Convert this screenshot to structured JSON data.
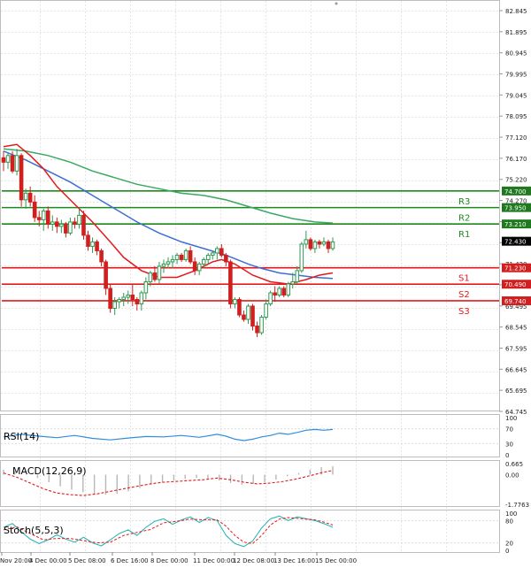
{
  "chart_data": {
    "type": "candlestick",
    "colors": {
      "up": "#2e9b52",
      "down": "#d11f1f",
      "ma_fast": "#e31a1c",
      "ma_mid": "#3b6fd6",
      "ma_slow": "#3aa864",
      "resistance": "#1f8a1f",
      "support": "#e31a1c",
      "rsi": "#2f8de0",
      "macd_hist": "#b7b7b7",
      "macd_signal": "#e31a1c",
      "stoch_k": "#2cb6b6",
      "stoch_d": "#e31a1c"
    },
    "price_axis": {
      "range": [
        64.745,
        82.845
      ],
      "ticks": [
        "82.845",
        "81.895",
        "80.945",
        "79.995",
        "79.045",
        "78.095",
        "77.120",
        "76.170",
        "75.220",
        "74.270",
        "73.320",
        "72.370",
        "71.420",
        "70.445",
        "69.495",
        "68.545",
        "67.595",
        "66.645",
        "65.695",
        "64.745"
      ]
    },
    "time_axis": {
      "labels": [
        "Nov 20:00",
        "4 Dec 00:00",
        "5 Dec 08:00",
        "6 Dec 16:00",
        "8 Dec 00:00",
        "11 Dec 00:00",
        "12 Dec 08:00",
        "13 Dec 16:00",
        "15 Dec 00:00"
      ]
    },
    "current_price": "72.430",
    "levels": [
      {
        "name": "R3",
        "value": 74.7,
        "price_label": "74.700",
        "kind": "resistance"
      },
      {
        "name": "R2",
        "value": 73.95,
        "price_label": "73.950",
        "kind": "resistance"
      },
      {
        "name": "R1",
        "value": 73.21,
        "price_label": "73.210",
        "kind": "resistance"
      },
      {
        "name": "S1",
        "value": 71.23,
        "price_label": "71.230",
        "kind": "support"
      },
      {
        "name": "S2",
        "value": 70.49,
        "price_label": "70.490",
        "kind": "support"
      },
      {
        "name": "S3",
        "value": 69.74,
        "price_label": "69.740",
        "kind": "support"
      }
    ],
    "candles": [
      [
        76.2,
        76.5,
        75.6,
        76.0
      ],
      [
        76.0,
        76.4,
        75.7,
        76.3
      ],
      [
        76.3,
        76.5,
        75.5,
        75.6
      ],
      [
        75.6,
        76.6,
        75.4,
        76.3
      ],
      [
        76.3,
        76.4,
        74.0,
        74.3
      ],
      [
        74.3,
        74.8,
        73.9,
        74.6
      ],
      [
        74.6,
        74.9,
        74.0,
        74.2
      ],
      [
        74.2,
        74.5,
        73.3,
        73.5
      ],
      [
        73.5,
        73.8,
        73.1,
        73.4
      ],
      [
        73.4,
        73.9,
        72.9,
        73.8
      ],
      [
        73.8,
        74.0,
        73.0,
        73.2
      ],
      [
        73.2,
        73.6,
        72.9,
        73.3
      ],
      [
        73.3,
        73.5,
        72.8,
        73.1
      ],
      [
        73.1,
        73.4,
        72.8,
        73.2
      ],
      [
        73.2,
        73.3,
        72.6,
        72.8
      ],
      [
        72.8,
        73.5,
        72.7,
        73.3
      ],
      [
        73.3,
        73.5,
        73.0,
        73.2
      ],
      [
        73.2,
        73.9,
        73.0,
        73.6
      ],
      [
        73.6,
        73.8,
        72.5,
        72.7
      ],
      [
        72.7,
        72.9,
        72.0,
        72.2
      ],
      [
        72.2,
        72.6,
        71.9,
        72.4
      ],
      [
        72.4,
        72.5,
        71.8,
        72.0
      ],
      [
        72.0,
        72.1,
        71.3,
        71.5
      ],
      [
        71.5,
        71.6,
        70.0,
        70.3
      ],
      [
        70.3,
        70.5,
        69.2,
        69.4
      ],
      [
        69.4,
        69.9,
        69.1,
        69.7
      ],
      [
        69.7,
        69.9,
        69.4,
        69.8
      ],
      [
        69.8,
        70.1,
        69.5,
        69.9
      ],
      [
        69.9,
        70.2,
        69.6,
        70.0
      ],
      [
        70.0,
        70.5,
        69.5,
        69.8
      ],
      [
        69.8,
        69.9,
        69.3,
        69.6
      ],
      [
        69.6,
        70.2,
        69.3,
        70.1
      ],
      [
        70.1,
        70.8,
        69.8,
        70.6
      ],
      [
        70.6,
        71.1,
        70.4,
        71.0
      ],
      [
        71.0,
        71.3,
        70.6,
        70.7
      ],
      [
        70.7,
        71.5,
        70.5,
        71.3
      ],
      [
        71.3,
        71.6,
        71.0,
        71.4
      ],
      [
        71.4,
        71.7,
        71.2,
        71.5
      ],
      [
        71.5,
        71.8,
        71.2,
        71.6
      ],
      [
        71.6,
        71.9,
        71.4,
        71.8
      ],
      [
        71.8,
        71.9,
        71.5,
        71.6
      ],
      [
        71.6,
        72.1,
        71.5,
        72.0
      ],
      [
        72.0,
        72.2,
        71.4,
        71.5
      ],
      [
        71.5,
        71.7,
        70.9,
        71.1
      ],
      [
        71.1,
        71.5,
        70.9,
        71.4
      ],
      [
        71.4,
        71.7,
        71.2,
        71.6
      ],
      [
        71.6,
        71.9,
        71.4,
        71.8
      ],
      [
        71.8,
        72.0,
        71.6,
        71.9
      ],
      [
        71.9,
        72.2,
        71.6,
        72.1
      ],
      [
        72.1,
        72.3,
        71.7,
        71.8
      ],
      [
        71.8,
        71.9,
        71.3,
        71.5
      ],
      [
        71.5,
        71.6,
        69.4,
        69.6
      ],
      [
        69.6,
        69.9,
        69.4,
        69.8
      ],
      [
        69.8,
        69.9,
        69.0,
        69.1
      ],
      [
        69.1,
        69.3,
        68.8,
        68.9
      ],
      [
        68.9,
        69.6,
        68.7,
        69.5
      ],
      [
        69.5,
        69.6,
        68.4,
        68.6
      ],
      [
        68.6,
        68.8,
        68.1,
        68.3
      ],
      [
        68.3,
        69.1,
        68.2,
        69.0
      ],
      [
        69.0,
        69.8,
        68.9,
        69.6
      ],
      [
        69.6,
        70.2,
        69.5,
        70.1
      ],
      [
        70.1,
        70.4,
        69.7,
        70.0
      ],
      [
        70.0,
        70.4,
        69.9,
        70.3
      ],
      [
        70.3,
        70.4,
        69.9,
        70.0
      ],
      [
        70.0,
        70.6,
        69.9,
        70.5
      ],
      [
        70.5,
        71.0,
        70.3,
        70.6
      ],
      [
        70.6,
        71.3,
        70.5,
        71.1
      ],
      [
        71.1,
        72.4,
        71.0,
        72.3
      ],
      [
        72.3,
        72.9,
        72.1,
        72.5
      ],
      [
        72.5,
        72.6,
        72.0,
        72.1
      ],
      [
        72.1,
        72.5,
        71.9,
        72.4
      ],
      [
        72.4,
        72.5,
        72.1,
        72.3
      ],
      [
        72.3,
        72.6,
        72.2,
        72.4
      ],
      [
        72.4,
        72.5,
        71.9,
        72.1
      ],
      [
        72.1,
        72.6,
        72.0,
        72.4
      ]
    ],
    "ma_fast": [
      [
        0,
        76.7
      ],
      [
        3,
        76.8
      ],
      [
        6,
        76.3
      ],
      [
        9,
        75.7
      ],
      [
        12,
        74.9
      ],
      [
        16,
        74.1
      ],
      [
        20,
        73.3
      ],
      [
        24,
        72.4
      ],
      [
        27,
        71.7
      ],
      [
        31,
        71.1
      ],
      [
        35,
        70.8
      ],
      [
        39,
        70.8
      ],
      [
        43,
        71.1
      ],
      [
        47,
        71.5
      ],
      [
        49,
        71.6
      ],
      [
        52,
        71.4
      ],
      [
        56,
        70.9
      ],
      [
        60,
        70.6
      ],
      [
        64,
        70.5
      ],
      [
        68,
        70.7
      ],
      [
        71,
        70.9
      ],
      [
        74,
        71.0
      ]
    ],
    "ma_mid": [
      [
        0,
        76.5
      ],
      [
        5,
        76.1
      ],
      [
        10,
        75.6
      ],
      [
        15,
        75.1
      ],
      [
        20,
        74.5
      ],
      [
        25,
        73.9
      ],
      [
        30,
        73.3
      ],
      [
        35,
        72.8
      ],
      [
        40,
        72.4
      ],
      [
        45,
        72.1
      ],
      [
        50,
        71.8
      ],
      [
        55,
        71.4
      ],
      [
        58,
        71.2
      ],
      [
        62,
        71.0
      ],
      [
        66,
        70.9
      ],
      [
        70,
        70.8
      ],
      [
        74,
        70.75
      ]
    ],
    "ma_slow": [
      [
        0,
        76.6
      ],
      [
        5,
        76.5
      ],
      [
        10,
        76.3
      ],
      [
        15,
        76.0
      ],
      [
        20,
        75.6
      ],
      [
        25,
        75.3
      ],
      [
        30,
        75.0
      ],
      [
        35,
        74.8
      ],
      [
        40,
        74.6
      ],
      [
        45,
        74.5
      ],
      [
        50,
        74.3
      ],
      [
        55,
        74.0
      ],
      [
        60,
        73.7
      ],
      [
        65,
        73.45
      ],
      [
        70,
        73.3
      ],
      [
        74,
        73.25
      ]
    ],
    "rsi": {
      "label": "RSI(14)",
      "range": [
        0,
        100
      ],
      "ticks": [
        "100",
        "70",
        "30",
        "0"
      ],
      "levels": [
        70,
        30
      ],
      "values": [
        [
          0,
          48
        ],
        [
          4,
          55
        ],
        [
          8,
          50
        ],
        [
          12,
          46
        ],
        [
          16,
          52
        ],
        [
          20,
          44
        ],
        [
          24,
          40
        ],
        [
          28,
          45
        ],
        [
          32,
          49
        ],
        [
          36,
          48
        ],
        [
          40,
          52
        ],
        [
          44,
          47
        ],
        [
          48,
          55
        ],
        [
          50,
          50
        ],
        [
          52,
          42
        ],
        [
          54,
          38
        ],
        [
          56,
          42
        ],
        [
          58,
          48
        ],
        [
          60,
          52
        ],
        [
          62,
          58
        ],
        [
          64,
          55
        ],
        [
          66,
          60
        ],
        [
          68,
          66
        ],
        [
          70,
          68
        ],
        [
          72,
          66
        ],
        [
          74,
          68
        ]
      ]
    },
    "macd": {
      "label": "MACD(12,26,9)",
      "range": [
        -1.7763,
        0.665
      ],
      "ticks": [
        "0.665",
        "0.00",
        "-1.7763"
      ],
      "histogram": [
        0.3,
        0.2,
        0.05,
        -0.2,
        -0.45,
        -0.7,
        -0.9,
        -1.05,
        -1.15,
        -1.2,
        -1.15,
        -1.0,
        -0.8,
        -0.6,
        -0.45,
        -0.35,
        -0.25,
        -0.2,
        -0.25,
        -0.35,
        -0.5,
        -0.6,
        -0.55,
        -0.45,
        -0.3,
        -0.1,
        0.1,
        0.3,
        0.45,
        0.5
      ],
      "signal": [
        [
          0,
          0.1
        ],
        [
          3,
          -0.15
        ],
        [
          6,
          -0.5
        ],
        [
          9,
          -0.85
        ],
        [
          12,
          -1.1
        ],
        [
          15,
          -1.2
        ],
        [
          18,
          -1.25
        ],
        [
          21,
          -1.15
        ],
        [
          24,
          -1.0
        ],
        [
          27,
          -0.85
        ],
        [
          30,
          -0.7
        ],
        [
          33,
          -0.55
        ],
        [
          36,
          -0.45
        ],
        [
          39,
          -0.4
        ],
        [
          42,
          -0.35
        ],
        [
          45,
          -0.3
        ],
        [
          48,
          -0.2
        ],
        [
          51,
          -0.3
        ],
        [
          54,
          -0.45
        ],
        [
          57,
          -0.55
        ],
        [
          60,
          -0.5
        ],
        [
          63,
          -0.4
        ],
        [
          66,
          -0.25
        ],
        [
          69,
          -0.05
        ],
        [
          72,
          0.15
        ],
        [
          74,
          0.25
        ]
      ]
    },
    "stoch": {
      "label": "Stoch(5,5,3)",
      "range": [
        0,
        100
      ],
      "ticks": [
        "100",
        "80",
        "20",
        "0"
      ],
      "levels": [
        80,
        20
      ],
      "k": [
        [
          0,
          62
        ],
        [
          2,
          72
        ],
        [
          4,
          50
        ],
        [
          6,
          30
        ],
        [
          8,
          18
        ],
        [
          10,
          28
        ],
        [
          12,
          42
        ],
        [
          14,
          30
        ],
        [
          16,
          22
        ],
        [
          18,
          35
        ],
        [
          20,
          20
        ],
        [
          22,
          12
        ],
        [
          24,
          28
        ],
        [
          26,
          45
        ],
        [
          28,
          55
        ],
        [
          30,
          40
        ],
        [
          32,
          62
        ],
        [
          34,
          78
        ],
        [
          36,
          85
        ],
        [
          38,
          70
        ],
        [
          40,
          82
        ],
        [
          42,
          90
        ],
        [
          44,
          75
        ],
        [
          46,
          88
        ],
        [
          48,
          80
        ],
        [
          50,
          40
        ],
        [
          52,
          18
        ],
        [
          54,
          10
        ],
        [
          56,
          25
        ],
        [
          58,
          60
        ],
        [
          60,
          85
        ],
        [
          62,
          92
        ],
        [
          64,
          80
        ],
        [
          66,
          90
        ],
        [
          68,
          85
        ],
        [
          70,
          80
        ],
        [
          72,
          72
        ],
        [
          74,
          62
        ]
      ],
      "d": [
        [
          0,
          55
        ],
        [
          3,
          63
        ],
        [
          6,
          45
        ],
        [
          9,
          28
        ],
        [
          12,
          32
        ],
        [
          15,
          32
        ],
        [
          18,
          26
        ],
        [
          21,
          20
        ],
        [
          24,
          22
        ],
        [
          27,
          40
        ],
        [
          30,
          48
        ],
        [
          33,
          56
        ],
        [
          36,
          74
        ],
        [
          39,
          78
        ],
        [
          42,
          84
        ],
        [
          45,
          82
        ],
        [
          48,
          82
        ],
        [
          50,
          65
        ],
        [
          52,
          40
        ],
        [
          54,
          22
        ],
        [
          56,
          18
        ],
        [
          58,
          40
        ],
        [
          60,
          68
        ],
        [
          62,
          84
        ],
        [
          64,
          88
        ],
        [
          66,
          86
        ],
        [
          68,
          84
        ],
        [
          70,
          82
        ],
        [
          72,
          76
        ],
        [
          74,
          68
        ]
      ]
    }
  }
}
